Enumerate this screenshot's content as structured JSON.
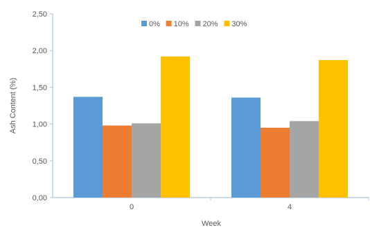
{
  "chart_data": {
    "type": "bar",
    "categories": [
      "0",
      "4"
    ],
    "series": [
      {
        "name": "0%",
        "values": [
          1.37,
          1.36
        ],
        "color": "#5B9BD5"
      },
      {
        "name": "10%",
        "values": [
          0.98,
          0.95
        ],
        "color": "#ED7D31"
      },
      {
        "name": "20%",
        "values": [
          1.01,
          1.04
        ],
        "color": "#A5A5A5"
      },
      {
        "name": "30%",
        "values": [
          1.92,
          1.87
        ],
        "color": "#FFC000"
      }
    ],
    "title": "",
    "xlabel": "Week",
    "ylabel": "Ash Content (%)",
    "ylim": [
      0,
      2.5
    ],
    "yticks": [
      "0,00",
      "0,50",
      "1,00",
      "1,50",
      "2,00",
      "2,50"
    ],
    "grid": false,
    "legend_position": "top-center"
  }
}
